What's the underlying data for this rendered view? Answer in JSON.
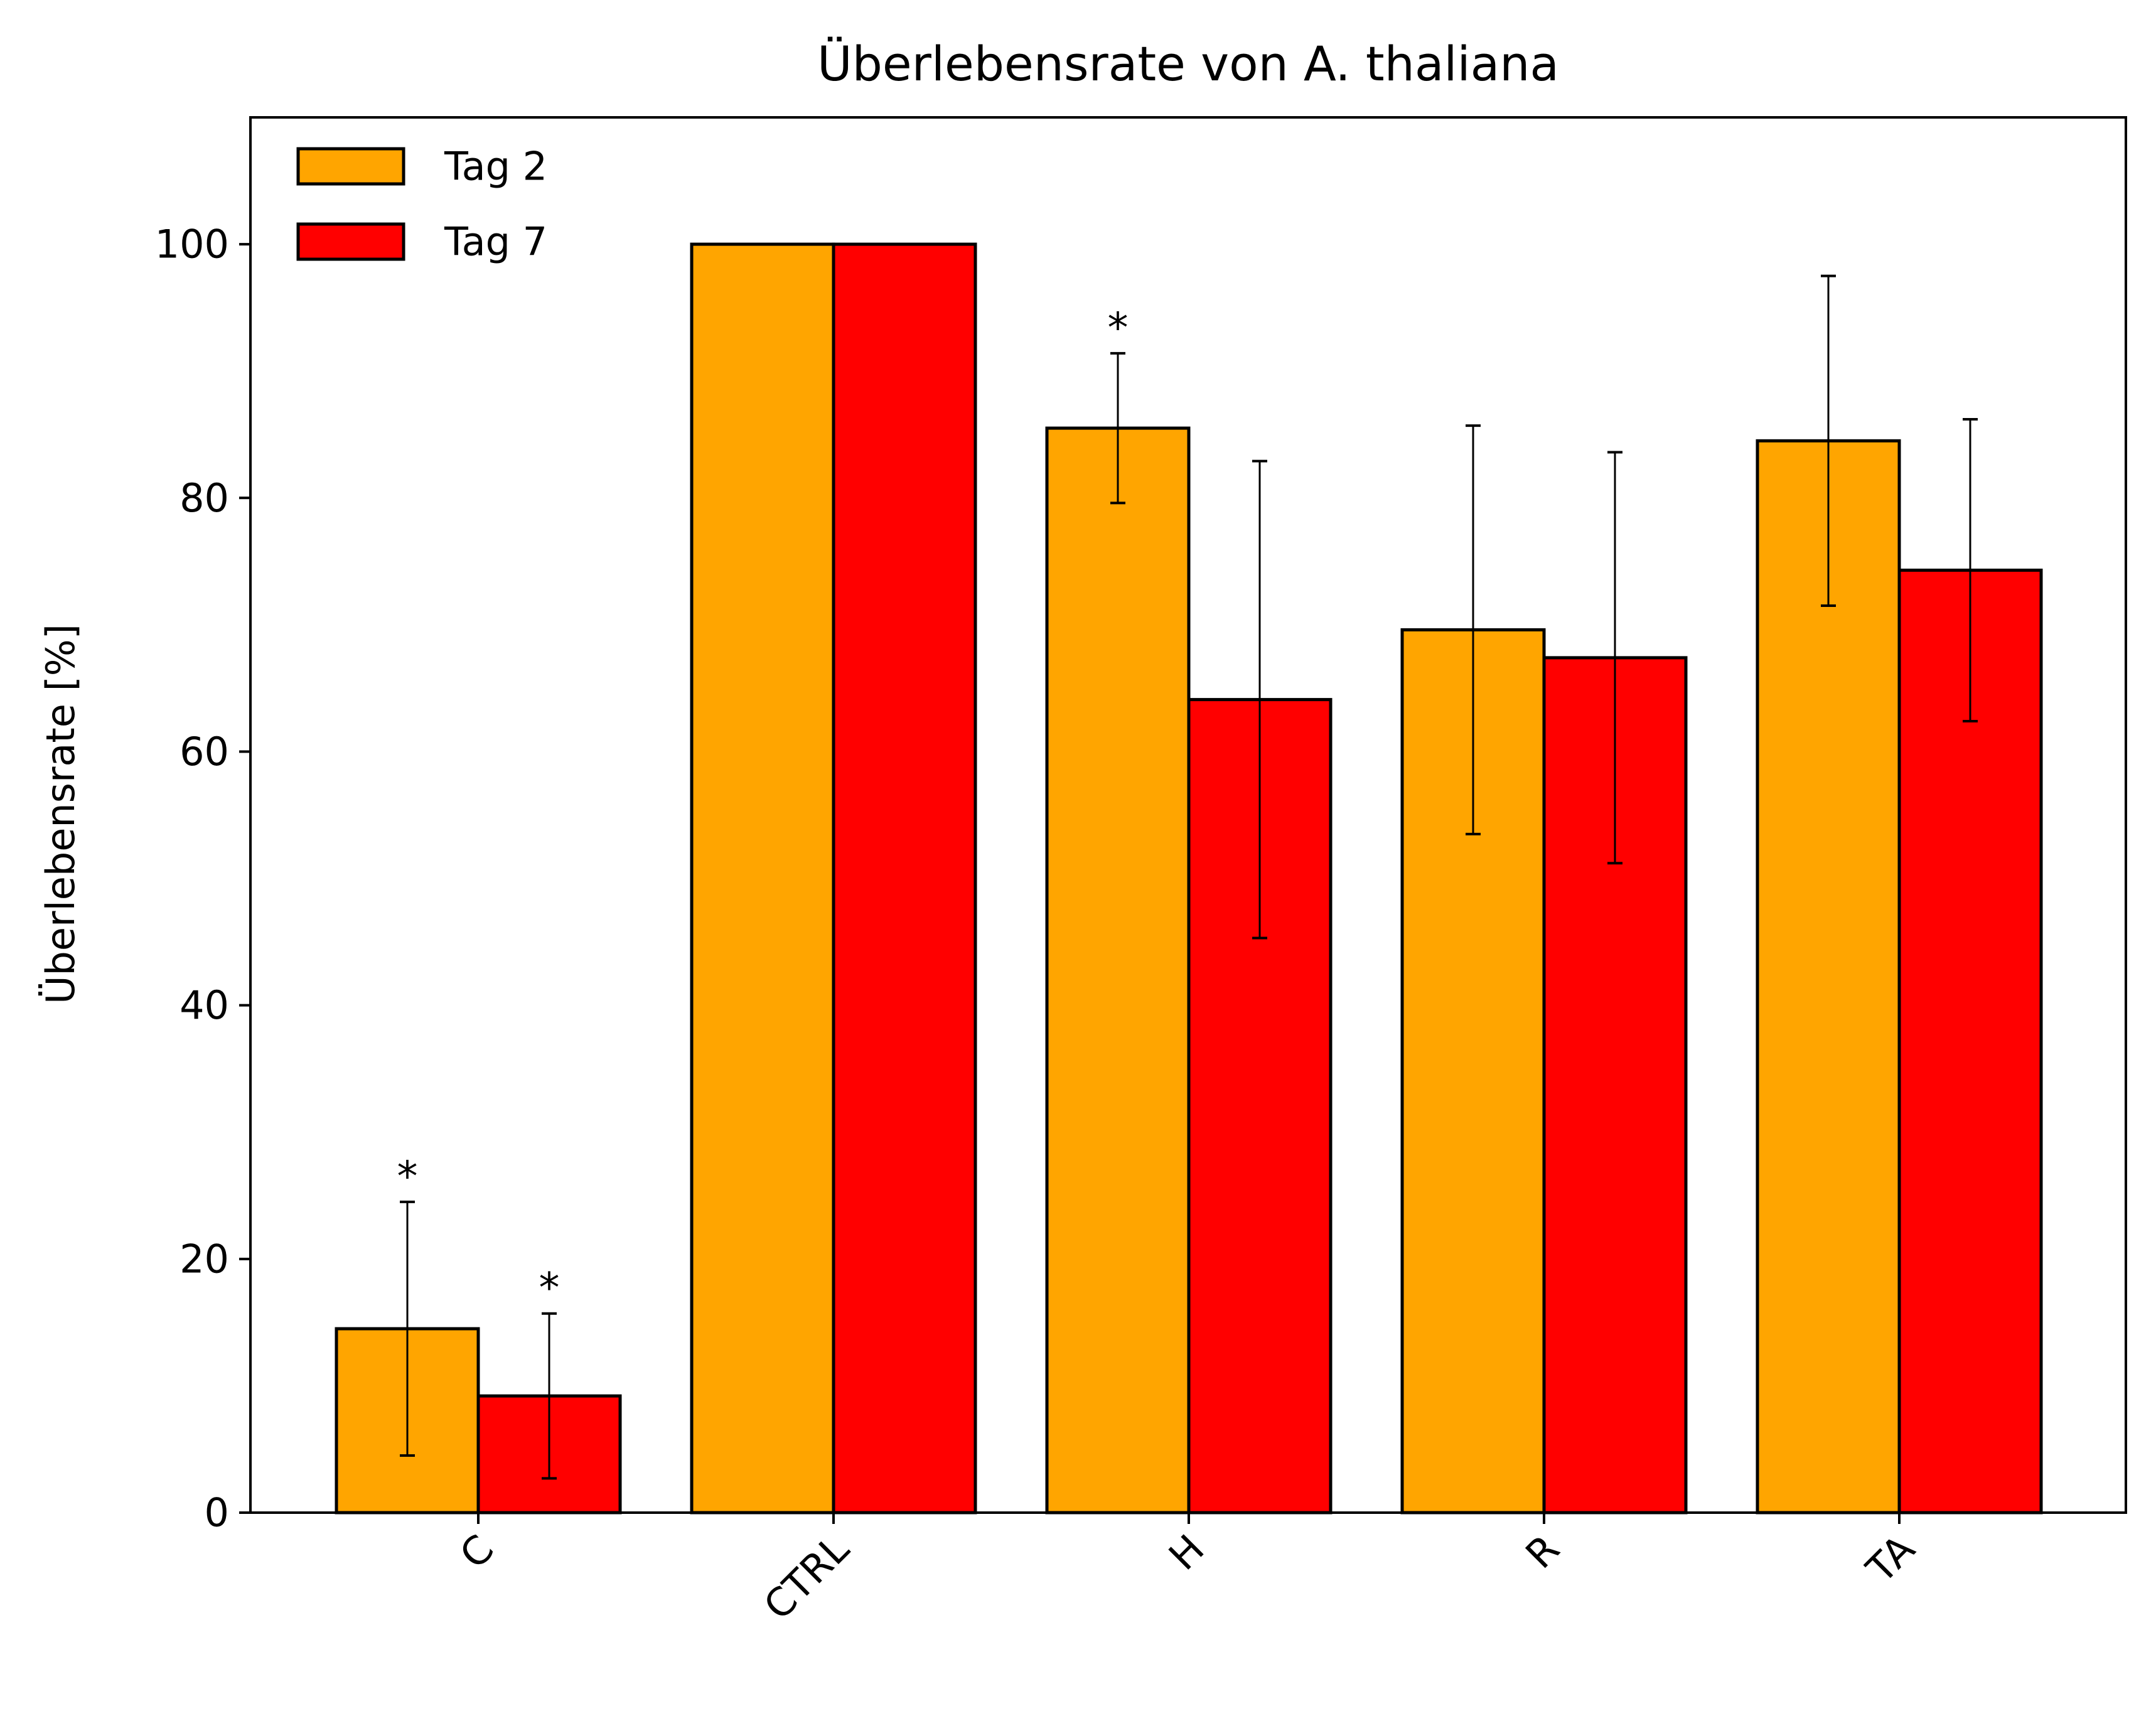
{
  "chart_data": {
    "type": "bar",
    "title": "Überlebensrate von A. thaliana",
    "xlabel": "",
    "ylabel": "Überlebensrate [%]",
    "ylim": [
      0,
      110
    ],
    "yticks": [
      0,
      20,
      40,
      60,
      80,
      100
    ],
    "categories": [
      "C",
      "CTRL",
      "H",
      "R",
      "TA"
    ],
    "series": [
      {
        "name": "Tag 2",
        "color": "#FFA500",
        "values": [
          14.5,
          100,
          85.5,
          69.6,
          84.5
        ],
        "errors": [
          10,
          0,
          5.9,
          16.1,
          13
        ],
        "significance": [
          "*",
          "",
          "*",
          "",
          ""
        ]
      },
      {
        "name": "Tag 7",
        "color": "#FF0000",
        "values": [
          9.2,
          100,
          64.1,
          67.4,
          74.3
        ],
        "errors": [
          6.5,
          0,
          18.8,
          16.2,
          11.9
        ],
        "significance": [
          "*",
          "",
          "",
          "",
          ""
        ]
      }
    ],
    "legend_position": "top-left",
    "grid": false
  }
}
